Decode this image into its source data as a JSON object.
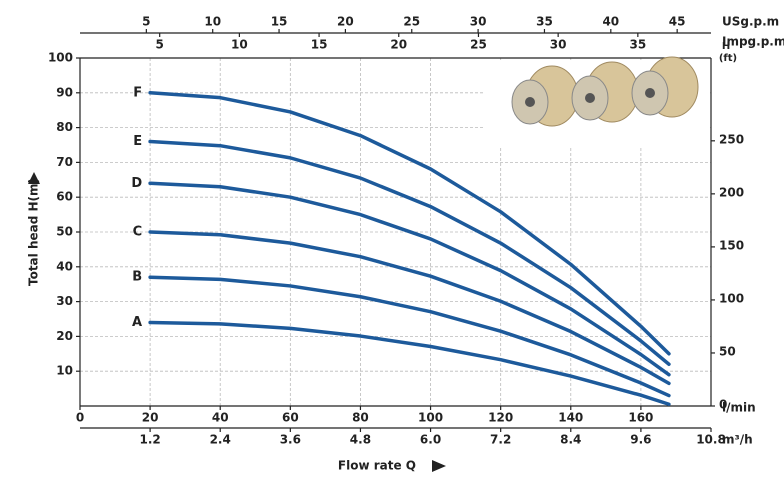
{
  "chart_data": {
    "type": "line",
    "x_label": "Flow rate Q",
    "y_label": "Total  head H(m)",
    "x_unit": "l/min",
    "y2_label": "H",
    "y2_unit": "(ft)",
    "x": [
      20,
      40,
      60,
      80,
      100,
      120,
      140,
      160,
      168
    ],
    "series": [
      {
        "name": "F",
        "color": "#1d5a9b",
        "values": [
          90,
          88.6,
          84.5,
          77.7,
          68.1,
          55.8,
          40.7,
          22.9,
          15
        ]
      },
      {
        "name": "E",
        "color": "#1d5a9b",
        "values": [
          76,
          74.8,
          71.3,
          65.5,
          57.3,
          46.8,
          34,
          18.7,
          12
        ]
      },
      {
        "name": "D",
        "color": "#1d5a9b",
        "values": [
          64,
          63,
          60,
          55,
          48,
          38.9,
          27.9,
          14.8,
          9
        ]
      },
      {
        "name": "C",
        "color": "#1d5a9b",
        "values": [
          50,
          49.2,
          46.8,
          42.9,
          37.3,
          30.1,
          21.4,
          11.1,
          6.5
        ]
      },
      {
        "name": "B",
        "color": "#1d5a9b",
        "values": [
          37,
          36.4,
          34.5,
          31.4,
          27.1,
          21.5,
          14.7,
          6.6,
          3
        ]
      },
      {
        "name": "A",
        "color": "#1d5a9b",
        "values": [
          24,
          23.6,
          22.3,
          20.1,
          17.1,
          13.3,
          8.6,
          3.1,
          0.5
        ]
      }
    ],
    "xlim": [
      0,
      180
    ],
    "xticks": [
      0,
      20,
      40,
      60,
      80,
      100,
      120,
      140,
      160
    ],
    "ylim": [
      0,
      100
    ],
    "yticks": [
      10,
      20,
      30,
      40,
      50,
      60,
      70,
      80,
      90,
      100
    ],
    "y2lim": [
      0,
      328.08
    ],
    "y2ticks": [
      0,
      50,
      100,
      150,
      200,
      250
    ],
    "grid": true,
    "extra_x_axes": [
      {
        "unit": "m³/h",
        "position": "bottom",
        "xlim": [
          0,
          10.8
        ],
        "xticks": [
          1.2,
          2.4,
          3.6,
          4.8,
          {
            "value": 6,
            "label": "6.0"
          },
          7.2,
          8.4,
          9.6,
          10.8
        ]
      },
      {
        "unit": "USg.p.m",
        "position": "top",
        "xlim": [
          0,
          47.55
        ],
        "xticks": [
          5,
          10,
          15,
          20,
          25,
          30,
          35,
          40,
          45
        ]
      },
      {
        "unit": "Impg.p.m",
        "position": "top",
        "xlim": [
          0,
          39.59
        ],
        "xticks": [
          5,
          10,
          15,
          20,
          25,
          30,
          35
        ]
      }
    ]
  }
}
